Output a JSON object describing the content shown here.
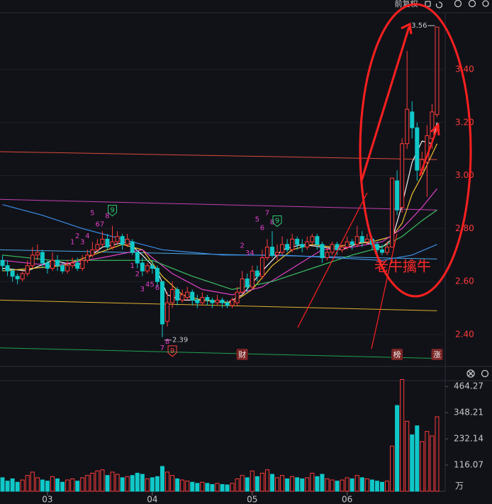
{
  "chart_data": {
    "type": "candlestick",
    "toolbar": "前复权",
    "up_color": "#ff3b3b",
    "down_color": "#10c8c8",
    "candles": {
      "open": [
        2.68,
        2.66,
        2.64,
        2.62,
        2.61,
        2.63,
        2.66,
        2.7,
        2.71,
        2.67,
        2.65,
        2.68,
        2.66,
        2.64,
        2.66,
        2.67,
        2.65,
        2.68,
        2.7,
        2.72,
        2.74,
        2.76,
        2.73,
        2.75,
        2.77,
        2.74,
        2.75,
        2.71,
        2.67,
        2.64,
        2.66,
        2.65,
        2.6,
        2.45,
        2.52,
        2.57,
        2.53,
        2.54,
        2.56,
        2.53,
        2.52,
        2.54,
        2.53,
        2.52,
        2.53,
        2.52,
        2.51,
        2.52,
        2.56,
        2.61,
        2.58,
        2.64,
        2.62,
        2.69,
        2.73,
        2.7,
        2.71,
        2.74,
        2.72,
        2.76,
        2.74,
        2.73,
        2.75,
        2.77,
        2.74,
        2.69,
        2.71,
        2.74,
        2.72,
        2.73,
        2.75,
        2.74,
        2.77,
        2.75,
        2.76,
        2.74,
        2.72,
        2.71,
        2.73,
        2.98,
        2.88,
        3.12,
        3.24,
        3.18,
        3.02,
        3.05,
        3.14,
        3.23
      ],
      "high": [
        2.7,
        2.68,
        2.65,
        2.63,
        2.64,
        2.68,
        2.73,
        2.74,
        2.72,
        2.68,
        2.71,
        2.7,
        2.67,
        2.68,
        2.69,
        2.69,
        2.7,
        2.72,
        2.75,
        2.76,
        2.79,
        2.78,
        2.81,
        2.79,
        2.78,
        2.78,
        2.76,
        2.72,
        2.69,
        2.67,
        2.68,
        2.66,
        2.6,
        2.56,
        2.6,
        2.58,
        2.57,
        2.58,
        2.57,
        2.55,
        2.56,
        2.55,
        2.54,
        2.55,
        2.54,
        2.53,
        2.54,
        2.58,
        2.64,
        2.63,
        2.66,
        2.66,
        2.72,
        2.76,
        2.79,
        2.74,
        2.77,
        2.76,
        2.78,
        2.77,
        2.76,
        2.77,
        2.78,
        2.78,
        2.75,
        2.73,
        2.75,
        2.75,
        2.74,
        2.77,
        2.76,
        2.81,
        2.79,
        2.78,
        2.77,
        2.75,
        2.74,
        2.75,
        2.99,
        3.02,
        3.14,
        3.47,
        3.28,
        3.2,
        3.09,
        3.19,
        3.27,
        3.56
      ],
      "low": [
        2.64,
        2.62,
        2.6,
        2.59,
        2.6,
        2.62,
        2.65,
        2.68,
        2.65,
        2.63,
        2.64,
        2.64,
        2.63,
        2.63,
        2.65,
        2.64,
        2.64,
        2.67,
        2.69,
        2.71,
        2.73,
        2.72,
        2.72,
        2.74,
        2.72,
        2.73,
        2.7,
        2.65,
        2.62,
        2.63,
        2.63,
        2.58,
        2.39,
        2.43,
        2.5,
        2.51,
        2.52,
        2.53,
        2.51,
        2.5,
        2.51,
        2.51,
        2.5,
        2.51,
        2.5,
        2.5,
        2.5,
        2.51,
        2.55,
        2.56,
        2.57,
        2.6,
        2.61,
        2.68,
        2.69,
        2.68,
        2.7,
        2.71,
        2.71,
        2.72,
        2.71,
        2.72,
        2.74,
        2.72,
        2.67,
        2.68,
        2.7,
        2.7,
        2.71,
        2.72,
        2.72,
        2.73,
        2.73,
        2.74,
        2.72,
        2.7,
        2.7,
        2.7,
        2.73,
        2.85,
        2.86,
        3.1,
        3.14,
        2.98,
        3.0,
        2.92,
        3.1,
        3.22
      ],
      "close": [
        2.66,
        2.64,
        2.62,
        2.61,
        2.63,
        2.66,
        2.7,
        2.71,
        2.67,
        2.65,
        2.68,
        2.66,
        2.64,
        2.66,
        2.67,
        2.65,
        2.68,
        2.7,
        2.72,
        2.74,
        2.76,
        2.73,
        2.75,
        2.77,
        2.74,
        2.76,
        2.71,
        2.67,
        2.64,
        2.66,
        2.65,
        2.6,
        2.44,
        2.52,
        2.57,
        2.53,
        2.55,
        2.56,
        2.53,
        2.52,
        2.54,
        2.53,
        2.52,
        2.53,
        2.52,
        2.51,
        2.53,
        2.56,
        2.61,
        2.58,
        2.64,
        2.62,
        2.69,
        2.73,
        2.7,
        2.71,
        2.74,
        2.72,
        2.76,
        2.74,
        2.73,
        2.75,
        2.77,
        2.74,
        2.69,
        2.71,
        2.74,
        2.72,
        2.73,
        2.75,
        2.74,
        2.77,
        2.75,
        2.76,
        2.74,
        2.72,
        2.71,
        2.73,
        2.99,
        2.87,
        3.12,
        3.25,
        3.18,
        3.02,
        3.06,
        3.15,
        3.24,
        3.56
      ]
    },
    "ylim": [
      2.3,
      3.6
    ],
    "yticks": [
      {
        "value": 2.4,
        "label": "2.40"
      },
      {
        "value": 2.6,
        "label": "2.60"
      },
      {
        "value": 2.8,
        "label": "2.80"
      },
      {
        "value": 3.0,
        "label": "3.00"
      },
      {
        "value": 3.2,
        "label": "3.20"
      },
      {
        "value": 3.4,
        "label": "3.40"
      }
    ],
    "xticks": [
      {
        "value": 9,
        "label": "03"
      },
      {
        "value": 30,
        "label": "04"
      },
      {
        "value": 50,
        "label": "05"
      },
      {
        "value": 69,
        "label": "06"
      }
    ],
    "moving_averages": [
      {
        "color": "#f0f0f0",
        "x": [
          0,
          5,
          10,
          15,
          20,
          25,
          28,
          31,
          33,
          36,
          40,
          45,
          48,
          52,
          56,
          60,
          64,
          68,
          72,
          76,
          78,
          80,
          82,
          84,
          86,
          87
        ],
        "values": [
          2.65,
          2.64,
          2.68,
          2.66,
          2.73,
          2.75,
          2.7,
          2.64,
          2.55,
          2.53,
          2.53,
          2.52,
          2.55,
          2.64,
          2.72,
          2.74,
          2.73,
          2.72,
          2.75,
          2.73,
          2.76,
          2.89,
          3.05,
          3.13,
          3.12,
          3.2
        ]
      },
      {
        "color": "#f2c230",
        "x": [
          0,
          6,
          12,
          18,
          24,
          28,
          32,
          36,
          40,
          46,
          50,
          54,
          58,
          62,
          66,
          70,
          74,
          78,
          80,
          82,
          84,
          86,
          87
        ],
        "values": [
          2.64,
          2.65,
          2.66,
          2.7,
          2.74,
          2.72,
          2.62,
          2.55,
          2.53,
          2.52,
          2.57,
          2.66,
          2.72,
          2.74,
          2.73,
          2.74,
          2.75,
          2.77,
          2.82,
          2.93,
          3.0,
          3.08,
          3.12
        ]
      },
      {
        "color": "#e040c8",
        "x": [
          0,
          10,
          20,
          28,
          34,
          40,
          46,
          52,
          58,
          64,
          70,
          76,
          80,
          84,
          87
        ],
        "values": [
          2.68,
          2.66,
          2.69,
          2.72,
          2.63,
          2.57,
          2.55,
          2.58,
          2.65,
          2.72,
          2.73,
          2.75,
          2.8,
          2.88,
          2.95
        ]
      },
      {
        "color": "#3cc060",
        "x": [
          0,
          10,
          20,
          30,
          38,
          46,
          54,
          62,
          70,
          76,
          80,
          84,
          87
        ],
        "values": [
          2.7,
          2.68,
          2.68,
          2.68,
          2.62,
          2.57,
          2.6,
          2.65,
          2.7,
          2.73,
          2.77,
          2.83,
          2.87
        ]
      },
      {
        "color": "#3a8ee8",
        "x": [
          0,
          8,
          16,
          24,
          32,
          44,
          56,
          66,
          76,
          82,
          87
        ],
        "values": [
          2.89,
          2.85,
          2.8,
          2.76,
          2.72,
          2.7,
          2.7,
          2.69,
          2.68,
          2.7,
          2.74
        ]
      }
    ],
    "trend_lines": [
      {
        "color": "#d84a3a",
        "values": [
          3.09,
          3.06
        ]
      },
      {
        "color": "#c040b0",
        "values": [
          2.91,
          2.87
        ]
      },
      {
        "color": "#4aa8e8",
        "values": [
          2.72,
          2.685
        ]
      },
      {
        "color": "#e0b030",
        "values": [
          2.53,
          2.49
        ]
      },
      {
        "color": "#20a050",
        "values": [
          2.35,
          2.31
        ]
      }
    ],
    "td_marks": [
      {
        "text": "1",
        "x": 14,
        "y": 2.749,
        "color": "#e040c8"
      },
      {
        "text": "2",
        "x": 15,
        "y": 2.771,
        "color": "#e040c8"
      },
      {
        "text": "3",
        "x": 16,
        "y": 2.749,
        "color": "#e040c8"
      },
      {
        "text": "4",
        "x": 17,
        "y": 2.771,
        "color": "#e040c8"
      },
      {
        "text": "5",
        "x": 18,
        "y": 2.859,
        "color": "#e040c8"
      },
      {
        "text": "67",
        "x": 19.5,
        "y": 2.816,
        "color": "#e040c8"
      },
      {
        "text": "8",
        "x": 21,
        "y": 2.848,
        "color": "#e040c8"
      },
      {
        "text": "9",
        "x": 22,
        "y": 2.869,
        "color": "#2ecc71",
        "boxed": true
      },
      {
        "text": "1",
        "x": 26,
        "y": 2.659,
        "color": "#e040c8"
      },
      {
        "text": "2",
        "x": 27,
        "y": 2.629,
        "color": "#e040c8"
      },
      {
        "text": "3",
        "x": 28,
        "y": 2.571,
        "color": "#e040c8"
      },
      {
        "text": "45",
        "x": 29.5,
        "y": 2.589,
        "color": "#e040c8"
      },
      {
        "text": "6",
        "x": 31,
        "y": 2.576,
        "color": "#e040c8"
      },
      {
        "text": "7",
        "x": 32,
        "y": 2.349,
        "color": "#e040c8"
      },
      {
        "text": "8",
        "x": 33,
        "y": 2.373,
        "color": "#e040c8"
      },
      {
        "text": "9",
        "x": 34,
        "y": 2.339,
        "color": "#ff4040",
        "boxed": true
      },
      {
        "text": "2",
        "x": 48,
        "y": 2.736,
        "color": "#e040c8"
      },
      {
        "text": "34",
        "x": 49.5,
        "y": 2.707,
        "color": "#e040c8"
      },
      {
        "text": "5",
        "x": 51,
        "y": 2.835,
        "color": "#e040c8"
      },
      {
        "text": "6",
        "x": 52,
        "y": 2.803,
        "color": "#e040c8"
      },
      {
        "text": "7",
        "x": 53,
        "y": 2.859,
        "color": "#e040c8"
      },
      {
        "text": "8",
        "x": 54,
        "y": 2.824,
        "color": "#e040c8"
      },
      {
        "text": "9",
        "x": 55,
        "y": 2.829,
        "color": "#2ecc71",
        "boxed": true
      }
    ],
    "events": [
      {
        "text": "财",
        "x": 48
      },
      {
        "text": "榜",
        "x": 79
      },
      {
        "text": "涨",
        "x": 87
      }
    ],
    "annotation": "老牛擒牛",
    "volume": {
      "values": [
        60,
        45,
        55,
        40,
        50,
        70,
        85,
        60,
        50,
        45,
        65,
        55,
        40,
        50,
        55,
        45,
        60,
        70,
        80,
        90,
        95,
        70,
        85,
        75,
        60,
        65,
        70,
        80,
        75,
        55,
        60,
        65,
        110,
        85,
        70,
        55,
        50,
        45,
        40,
        35,
        40,
        35,
        30,
        35,
        30,
        28,
        35,
        55,
        70,
        60,
        90,
        65,
        80,
        95,
        75,
        60,
        70,
        55,
        65,
        60,
        55,
        60,
        80,
        65,
        75,
        55,
        50,
        45,
        50,
        60,
        55,
        70,
        60,
        55,
        50,
        45,
        40,
        45,
        200,
        380,
        495,
        310,
        250,
        290,
        220,
        265,
        245,
        330
      ],
      "ylim": [
        0,
        490
      ],
      "yticks": [
        116.07,
        232.14,
        348.21,
        464.27
      ],
      "unit": "万"
    }
  }
}
